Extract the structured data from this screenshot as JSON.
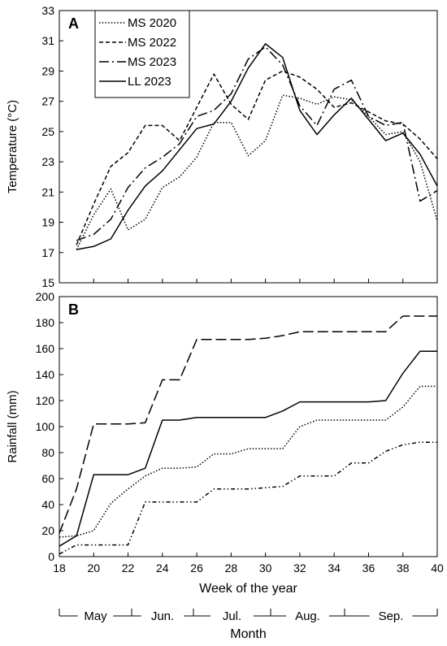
{
  "chart_data": [
    {
      "panel_label": "A",
      "type": "line",
      "ylabel": "Temperature (°C)",
      "ylim": [
        15,
        33
      ],
      "yticks": [
        15,
        17,
        19,
        21,
        23,
        25,
        27,
        29,
        31,
        33
      ],
      "xlim": [
        18,
        40
      ],
      "grid": false,
      "legend_position": "top-left",
      "series": [
        {
          "name": "MS 2020",
          "dash": "dotted",
          "x": [
            19,
            20,
            21,
            22,
            23,
            24,
            25,
            26,
            27,
            28,
            29,
            30,
            31,
            32,
            33,
            34,
            35,
            36,
            37,
            38,
            39,
            40
          ],
          "y": [
            17.2,
            19.5,
            21.2,
            18.5,
            19.2,
            21.3,
            22.0,
            23.3,
            25.6,
            25.6,
            23.4,
            24.4,
            27.4,
            27.2,
            26.8,
            27.3,
            27.1,
            26.0,
            24.8,
            25.0,
            23.0,
            19.1
          ]
        },
        {
          "name": "MS 2022",
          "dash": "dashed",
          "x": [
            19,
            20,
            21,
            22,
            23,
            24,
            25,
            26,
            27,
            28,
            29,
            30,
            31,
            32,
            33,
            34,
            35,
            36,
            37,
            38,
            39,
            40
          ],
          "y": [
            17.5,
            20.2,
            22.7,
            23.6,
            25.4,
            25.4,
            24.4,
            26.6,
            28.8,
            26.8,
            25.8,
            28.4,
            29.0,
            28.6,
            27.8,
            26.6,
            26.9,
            26.3,
            25.7,
            25.5,
            24.5,
            23.2
          ]
        },
        {
          "name": "MS 2023",
          "dash": "dashdot",
          "x": [
            19,
            20,
            21,
            22,
            23,
            24,
            25,
            26,
            27,
            28,
            29,
            30,
            31,
            32,
            33,
            34,
            35,
            36,
            37,
            38,
            39,
            40
          ],
          "y": [
            17.8,
            18.2,
            19.2,
            21.3,
            22.6,
            23.3,
            24.2,
            26.0,
            26.4,
            27.5,
            29.8,
            30.6,
            29.4,
            26.7,
            25.4,
            27.8,
            28.4,
            26.0,
            25.4,
            25.6,
            20.4,
            21.1
          ]
        },
        {
          "name": "LL 2023",
          "dash": "solid",
          "x": [
            19,
            20,
            21,
            22,
            23,
            24,
            25,
            26,
            27,
            28,
            29,
            30,
            31,
            32,
            33,
            34,
            35,
            36,
            37,
            38,
            39,
            40
          ],
          "y": [
            17.2,
            17.4,
            17.9,
            19.8,
            21.4,
            22.4,
            23.8,
            25.2,
            25.5,
            27.0,
            29.2,
            30.8,
            29.9,
            26.4,
            24.8,
            26.1,
            27.2,
            25.8,
            24.4,
            24.9,
            23.5,
            21.4
          ]
        }
      ]
    },
    {
      "panel_label": "B",
      "type": "line",
      "ylabel": "Rainfall (mm)",
      "xlabel": "Week of the year",
      "ylim": [
        0,
        200
      ],
      "yticks": [
        0,
        20,
        40,
        60,
        80,
        100,
        120,
        140,
        160,
        180,
        200
      ],
      "xlim": [
        18,
        40
      ],
      "xticks": [
        18,
        20,
        22,
        24,
        26,
        28,
        30,
        32,
        34,
        36,
        38,
        40
      ],
      "grid": false,
      "series": [
        {
          "dash": "dashed-long",
          "x": [
            18,
            19,
            20,
            21,
            22,
            23,
            24,
            25,
            26,
            27,
            28,
            29,
            30,
            31,
            32,
            33,
            34,
            35,
            36,
            37,
            38,
            39,
            40
          ],
          "y": [
            18,
            52,
            102,
            102,
            102,
            103,
            136,
            136,
            167,
            167,
            167,
            167,
            168,
            170,
            173,
            173,
            173,
            173,
            173,
            173,
            185,
            185,
            185
          ]
        },
        {
          "dash": "solid",
          "x": [
            18,
            19,
            20,
            21,
            22,
            23,
            24,
            25,
            26,
            27,
            28,
            29,
            30,
            31,
            32,
            33,
            34,
            35,
            36,
            37,
            38,
            39,
            40
          ],
          "y": [
            8,
            16,
            63,
            63,
            63,
            68,
            105,
            105,
            107,
            107,
            107,
            107,
            107,
            112,
            119,
            119,
            119,
            119,
            119,
            120,
            141,
            158,
            158
          ]
        },
        {
          "dash": "dotted",
          "x": [
            18,
            19,
            20,
            21,
            22,
            23,
            24,
            25,
            26,
            27,
            28,
            29,
            30,
            31,
            32,
            33,
            34,
            35,
            36,
            37,
            38,
            39,
            40
          ],
          "y": [
            15,
            16,
            20,
            41,
            52,
            62,
            68,
            68,
            69,
            79,
            79,
            83,
            83,
            83,
            100,
            105,
            105,
            105,
            105,
            105,
            115,
            131,
            131
          ]
        },
        {
          "dash": "dash-dot-dot",
          "x": [
            18,
            19,
            20,
            21,
            22,
            23,
            24,
            25,
            26,
            27,
            28,
            29,
            30,
            31,
            32,
            33,
            34,
            35,
            36,
            37,
            38,
            39,
            40
          ],
          "y": [
            2,
            9,
            9,
            9,
            9,
            42,
            42,
            42,
            42,
            52,
            52,
            52,
            53,
            54,
            62,
            62,
            62,
            72,
            72,
            81,
            86,
            88,
            88
          ]
        }
      ]
    }
  ],
  "months": {
    "title": "Month",
    "labels": [
      "May",
      "Jun.",
      "Jul.",
      "Aug.",
      "Sep."
    ]
  }
}
